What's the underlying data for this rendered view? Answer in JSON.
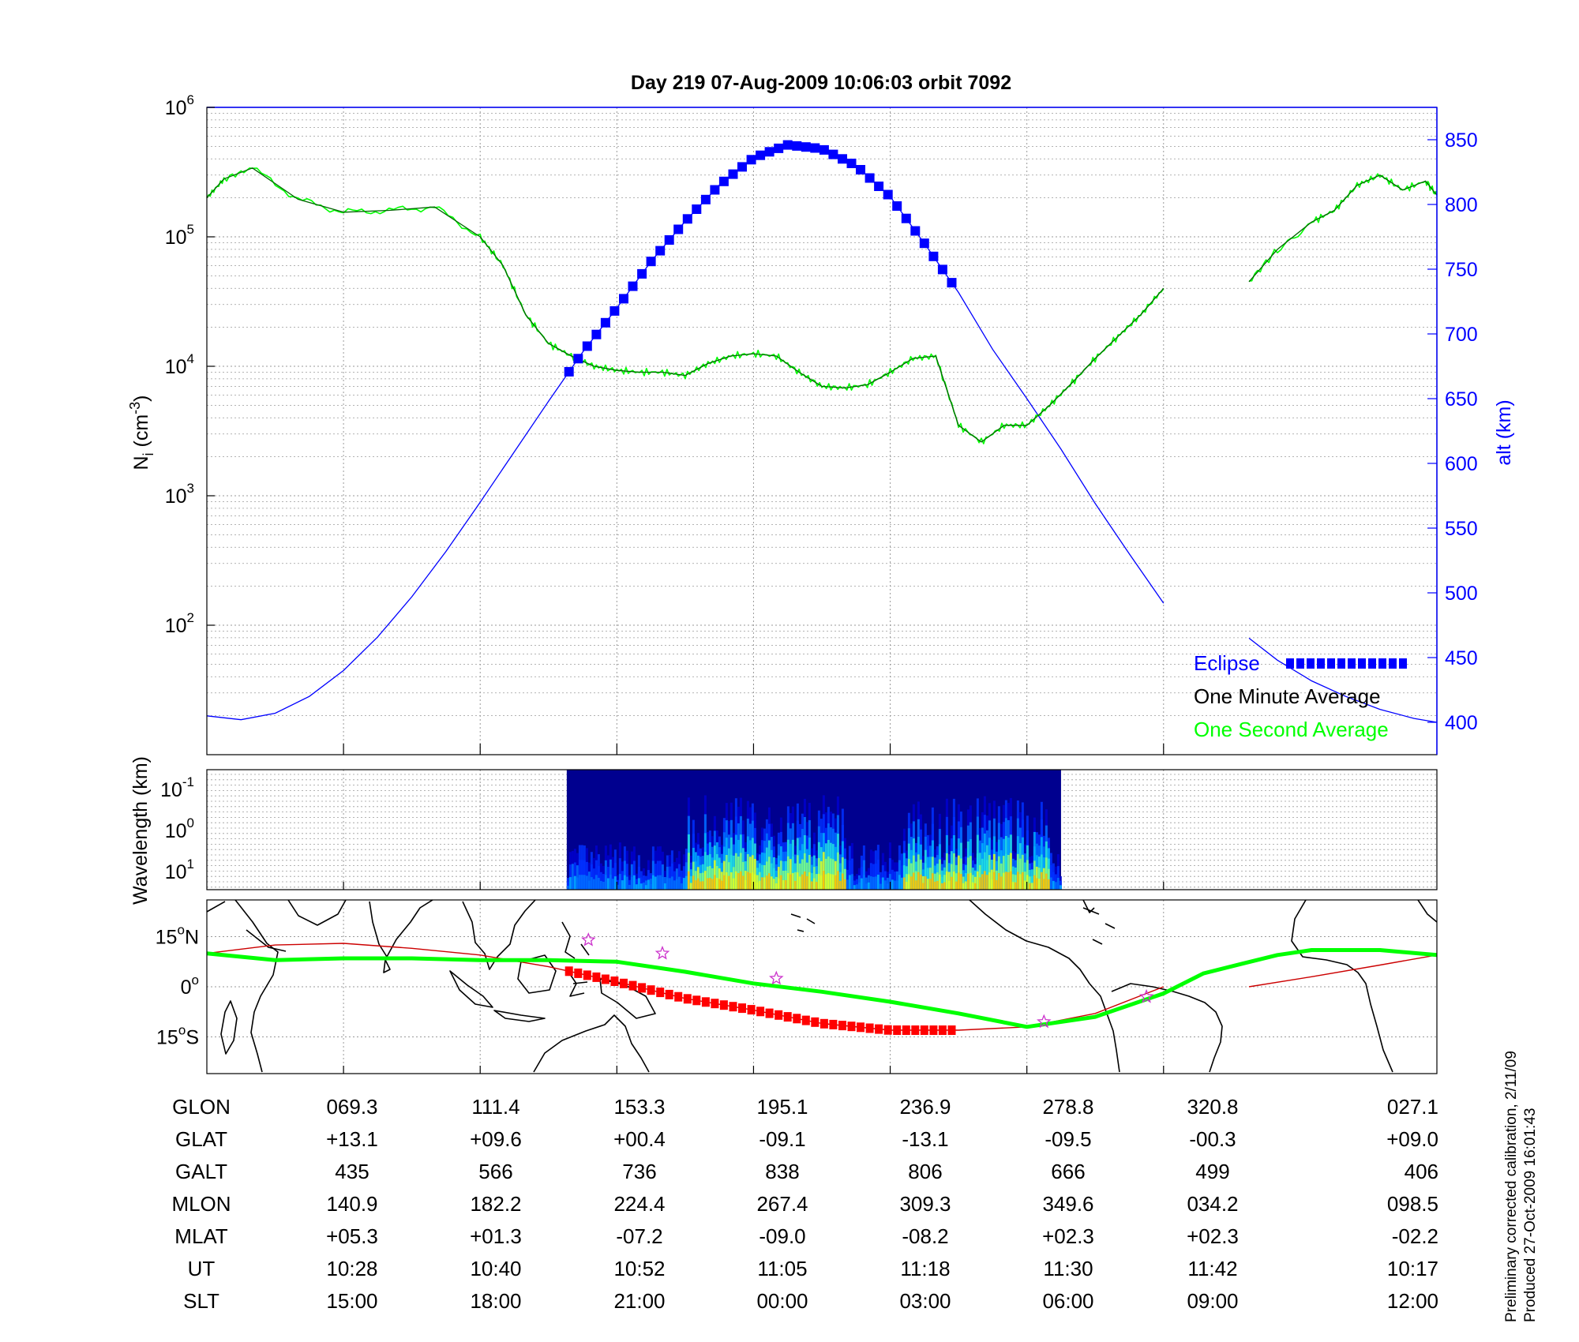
{
  "title": "Day 219  07-Aug-2009 10:06:03   orbit 7092",
  "colors": {
    "blue": "#0000ff",
    "green": "#00ff00",
    "dark_green": "#006400",
    "red": "#ff0000",
    "map_track_red": "#cc0000",
    "star": "#cc33cc"
  },
  "chart_data": [
    {
      "type": "line",
      "panel": "ion density and altitude",
      "ylabel": "N",
      "ylabel_sub": "i",
      "ylabel_unit_open": " (cm",
      "ylabel_unit_sup": "-3",
      "ylabel_unit_close": ")",
      "ylabel_right": "alt (km)",
      "yscale": "log",
      "ylim": [
        10,
        1000000
      ],
      "y_ticks": [
        {
          "base": "10",
          "exp": "6",
          "value": 1000000
        },
        {
          "base": "10",
          "exp": "5",
          "value": 100000
        },
        {
          "base": "10",
          "exp": "4",
          "value": 10000
        },
        {
          "base": "10",
          "exp": "3",
          "value": 1000
        },
        {
          "base": "10",
          "exp": "2",
          "value": 100
        }
      ],
      "y2lim": [
        375,
        875
      ],
      "y2_ticks": [
        "850",
        "800",
        "750",
        "700",
        "650",
        "600",
        "550",
        "500",
        "450",
        "400"
      ],
      "x_range_min": [
        0,
        108
      ],
      "x_tick_minutes": [
        12,
        24,
        36,
        48,
        60,
        72,
        84
      ],
      "grid": true,
      "legend": {
        "placement": "bottom-right",
        "entries": [
          "Eclipse",
          "One Minute Average",
          "One Second Average"
        ]
      },
      "series": [
        {
          "name": "One Minute Average",
          "unit": "cm^-3",
          "x": [
            0,
            1.5,
            4,
            8,
            12,
            16,
            20,
            24,
            26,
            28,
            30,
            32,
            34,
            36,
            38,
            40,
            42,
            44,
            46,
            48,
            50,
            52,
            54,
            56,
            58,
            60,
            62,
            64,
            66,
            68,
            70,
            72,
            74,
            76,
            78,
            80,
            82,
            84
          ],
          "values": [
            200000,
            280000,
            340000,
            195000,
            155000,
            160000,
            170000,
            100000,
            60000,
            25000,
            15000,
            12000,
            10000,
            9300,
            9000,
            9000,
            8500,
            10500,
            12000,
            12500,
            12000,
            9000,
            7000,
            6800,
            7200,
            9000,
            11500,
            12000,
            3500,
            2600,
            3500,
            3500,
            5000,
            7500,
            11500,
            17000,
            25000,
            40000
          ]
        },
        {
          "name": "One Minute Average",
          "unit": "cm^-3",
          "x": [
            91.5,
            94,
            97,
            99,
            101,
            103,
            105,
            107,
            108
          ],
          "values": [
            45000,
            80000,
            130000,
            160000,
            250000,
            300000,
            230000,
            270000,
            210000
          ]
        },
        {
          "name": "One Second Average",
          "unit": "cm^-3",
          "x": [
            0,
            1.5,
            4,
            8,
            12,
            16,
            20,
            24,
            26,
            28,
            30,
            32,
            34,
            36,
            38,
            40,
            42,
            44,
            46,
            48,
            50,
            52,
            54,
            56,
            58,
            60,
            62,
            64,
            66,
            68,
            70,
            72,
            74,
            76,
            78,
            80,
            82,
            84
          ],
          "values": [
            200000,
            280000,
            340000,
            195000,
            155000,
            160000,
            170000,
            100000,
            60000,
            25000,
            15000,
            12000,
            10000,
            9300,
            9000,
            9000,
            8500,
            10500,
            12000,
            12500,
            12000,
            9000,
            7000,
            6800,
            7200,
            9000,
            11500,
            12000,
            3500,
            2600,
            3500,
            3500,
            5000,
            7500,
            11500,
            17000,
            25000,
            40000
          ]
        },
        {
          "name": "One Second Average",
          "unit": "cm^-3",
          "x": [
            91.5,
            94,
            97,
            99,
            101,
            103,
            105,
            107,
            108
          ],
          "values": [
            45000,
            80000,
            130000,
            160000,
            250000,
            300000,
            230000,
            270000,
            210000
          ]
        },
        {
          "name": "alt (km)",
          "unit": "km",
          "x": [
            0,
            3,
            6,
            9,
            12,
            15,
            18,
            21,
            24,
            27,
            30,
            33,
            36,
            39,
            42,
            45,
            48,
            51,
            54,
            57,
            60,
            63,
            66,
            69,
            72,
            75,
            78,
            81,
            84
          ],
          "values": [
            405,
            402,
            407,
            420,
            440,
            466,
            497,
            532,
            570,
            609,
            648,
            686,
            720,
            756,
            787,
            815,
            836,
            846,
            843,
            830,
            806,
            770,
            732,
            688,
            650,
            611,
            569,
            530,
            492
          ]
        },
        {
          "name": "alt (km)",
          "unit": "km",
          "x": [
            91.5,
            94,
            97,
            100,
            103,
            106,
            108
          ],
          "values": [
            465,
            448,
            432,
            420,
            410,
            403,
            400
          ]
        },
        {
          "name": "Eclipse",
          "unit": "km",
          "x_start": 31.8,
          "x_end": 65.8,
          "x_step": 0.8
        }
      ]
    },
    {
      "type": "heatmap",
      "panel": "spectrogram",
      "ylabel": "Wavelength (km)",
      "yscale": "log",
      "y_ticks": [
        {
          "base": "10",
          "exp": "-1"
        },
        {
          "base": "10",
          "exp": "0"
        },
        {
          "base": "10",
          "exp": "1"
        }
      ],
      "x_range_min": [
        31.6,
        75
      ],
      "colormap": "jet",
      "active_bands_min": [
        [
          42,
          56
        ],
        [
          61,
          74
        ]
      ]
    },
    {
      "type": "line",
      "panel": "map",
      "y_ticks": [
        {
          "text": "15",
          "deg": "o",
          "hemi": "N",
          "value": 15
        },
        {
          "text": "0",
          "deg": "o",
          "hemi": "",
          "value": 0
        },
        {
          "text": "15",
          "deg": "o",
          "hemi": "S",
          "value": -15
        }
      ],
      "ylim": [
        -26,
        26
      ],
      "series": [
        {
          "name": "satellite ground track",
          "x": [
            0,
            6,
            12,
            18,
            24,
            30,
            36,
            42,
            48,
            54,
            60,
            66,
            72,
            78,
            84
          ],
          "values": [
            10,
            12.5,
            13,
            11.5,
            9.5,
            6,
            1.5,
            -3.5,
            -7,
            -11,
            -13,
            -13,
            -12,
            -8,
            0
          ]
        },
        {
          "name": "satellite ground track",
          "x": [
            91.5,
            97,
            103,
            108
          ],
          "values": [
            0,
            3,
            6.5,
            9.5
          ]
        },
        {
          "name": "magnetic equator",
          "x": [
            0,
            6,
            12,
            18,
            24,
            30,
            36,
            42,
            48,
            54,
            60,
            66,
            72,
            78,
            84,
            87.5,
            91,
            94,
            97,
            103,
            108
          ],
          "values": [
            10,
            8,
            8.5,
            8.5,
            8,
            8,
            7.5,
            4.5,
            1,
            -1.5,
            -4.5,
            -8,
            -12,
            -9,
            -2,
            4,
            7,
            9.5,
            11,
            11,
            9.5
          ]
        },
        {
          "name": "eclipse track",
          "x_start": 31.8,
          "x_end": 65.8,
          "x_step": 0.8
        },
        {
          "name": "stars",
          "x": [
            33.5,
            40,
            50,
            82.5,
            73.5
          ],
          "values": [
            14,
            10,
            2.5,
            -3,
            -10.5
          ]
        }
      ]
    }
  ],
  "table": {
    "rows": [
      {
        "label": "GLON",
        "values": [
          "069.3",
          "111.4",
          "153.3",
          "195.1",
          "236.9",
          "278.8",
          "320.8",
          "027.1"
        ]
      },
      {
        "label": "GLAT",
        "values": [
          "+13.1",
          "+09.6",
          "+00.4",
          "-09.1",
          "-13.1",
          "-09.5",
          "-00.3",
          "+09.0"
        ]
      },
      {
        "label": "GALT",
        "values": [
          "435",
          "566",
          "736",
          "838",
          "806",
          "666",
          "499",
          "406"
        ]
      },
      {
        "label": "MLON",
        "values": [
          "140.9",
          "182.2",
          "224.4",
          "267.4",
          "309.3",
          "349.6",
          "034.2",
          "098.5"
        ]
      },
      {
        "label": "MLAT",
        "values": [
          "+05.3",
          "+01.3",
          "-07.2",
          "-09.0",
          "-08.2",
          "+02.3",
          "+02.3",
          "-02.2"
        ]
      },
      {
        "label": "UT",
        "values": [
          "10:28",
          "10:40",
          "10:52",
          "11:05",
          "11:18",
          "11:30",
          "11:42",
          "10:17"
        ]
      },
      {
        "label": "SLT",
        "values": [
          "15:00",
          "18:00",
          "21:00",
          "00:00",
          "03:00",
          "06:00",
          "09:00",
          "12:00"
        ]
      }
    ]
  },
  "footnote": {
    "line1": "Preliminary corrected calibration, 2/11/09",
    "line2": "Produced 27-Oct-2009 16:01:43"
  }
}
